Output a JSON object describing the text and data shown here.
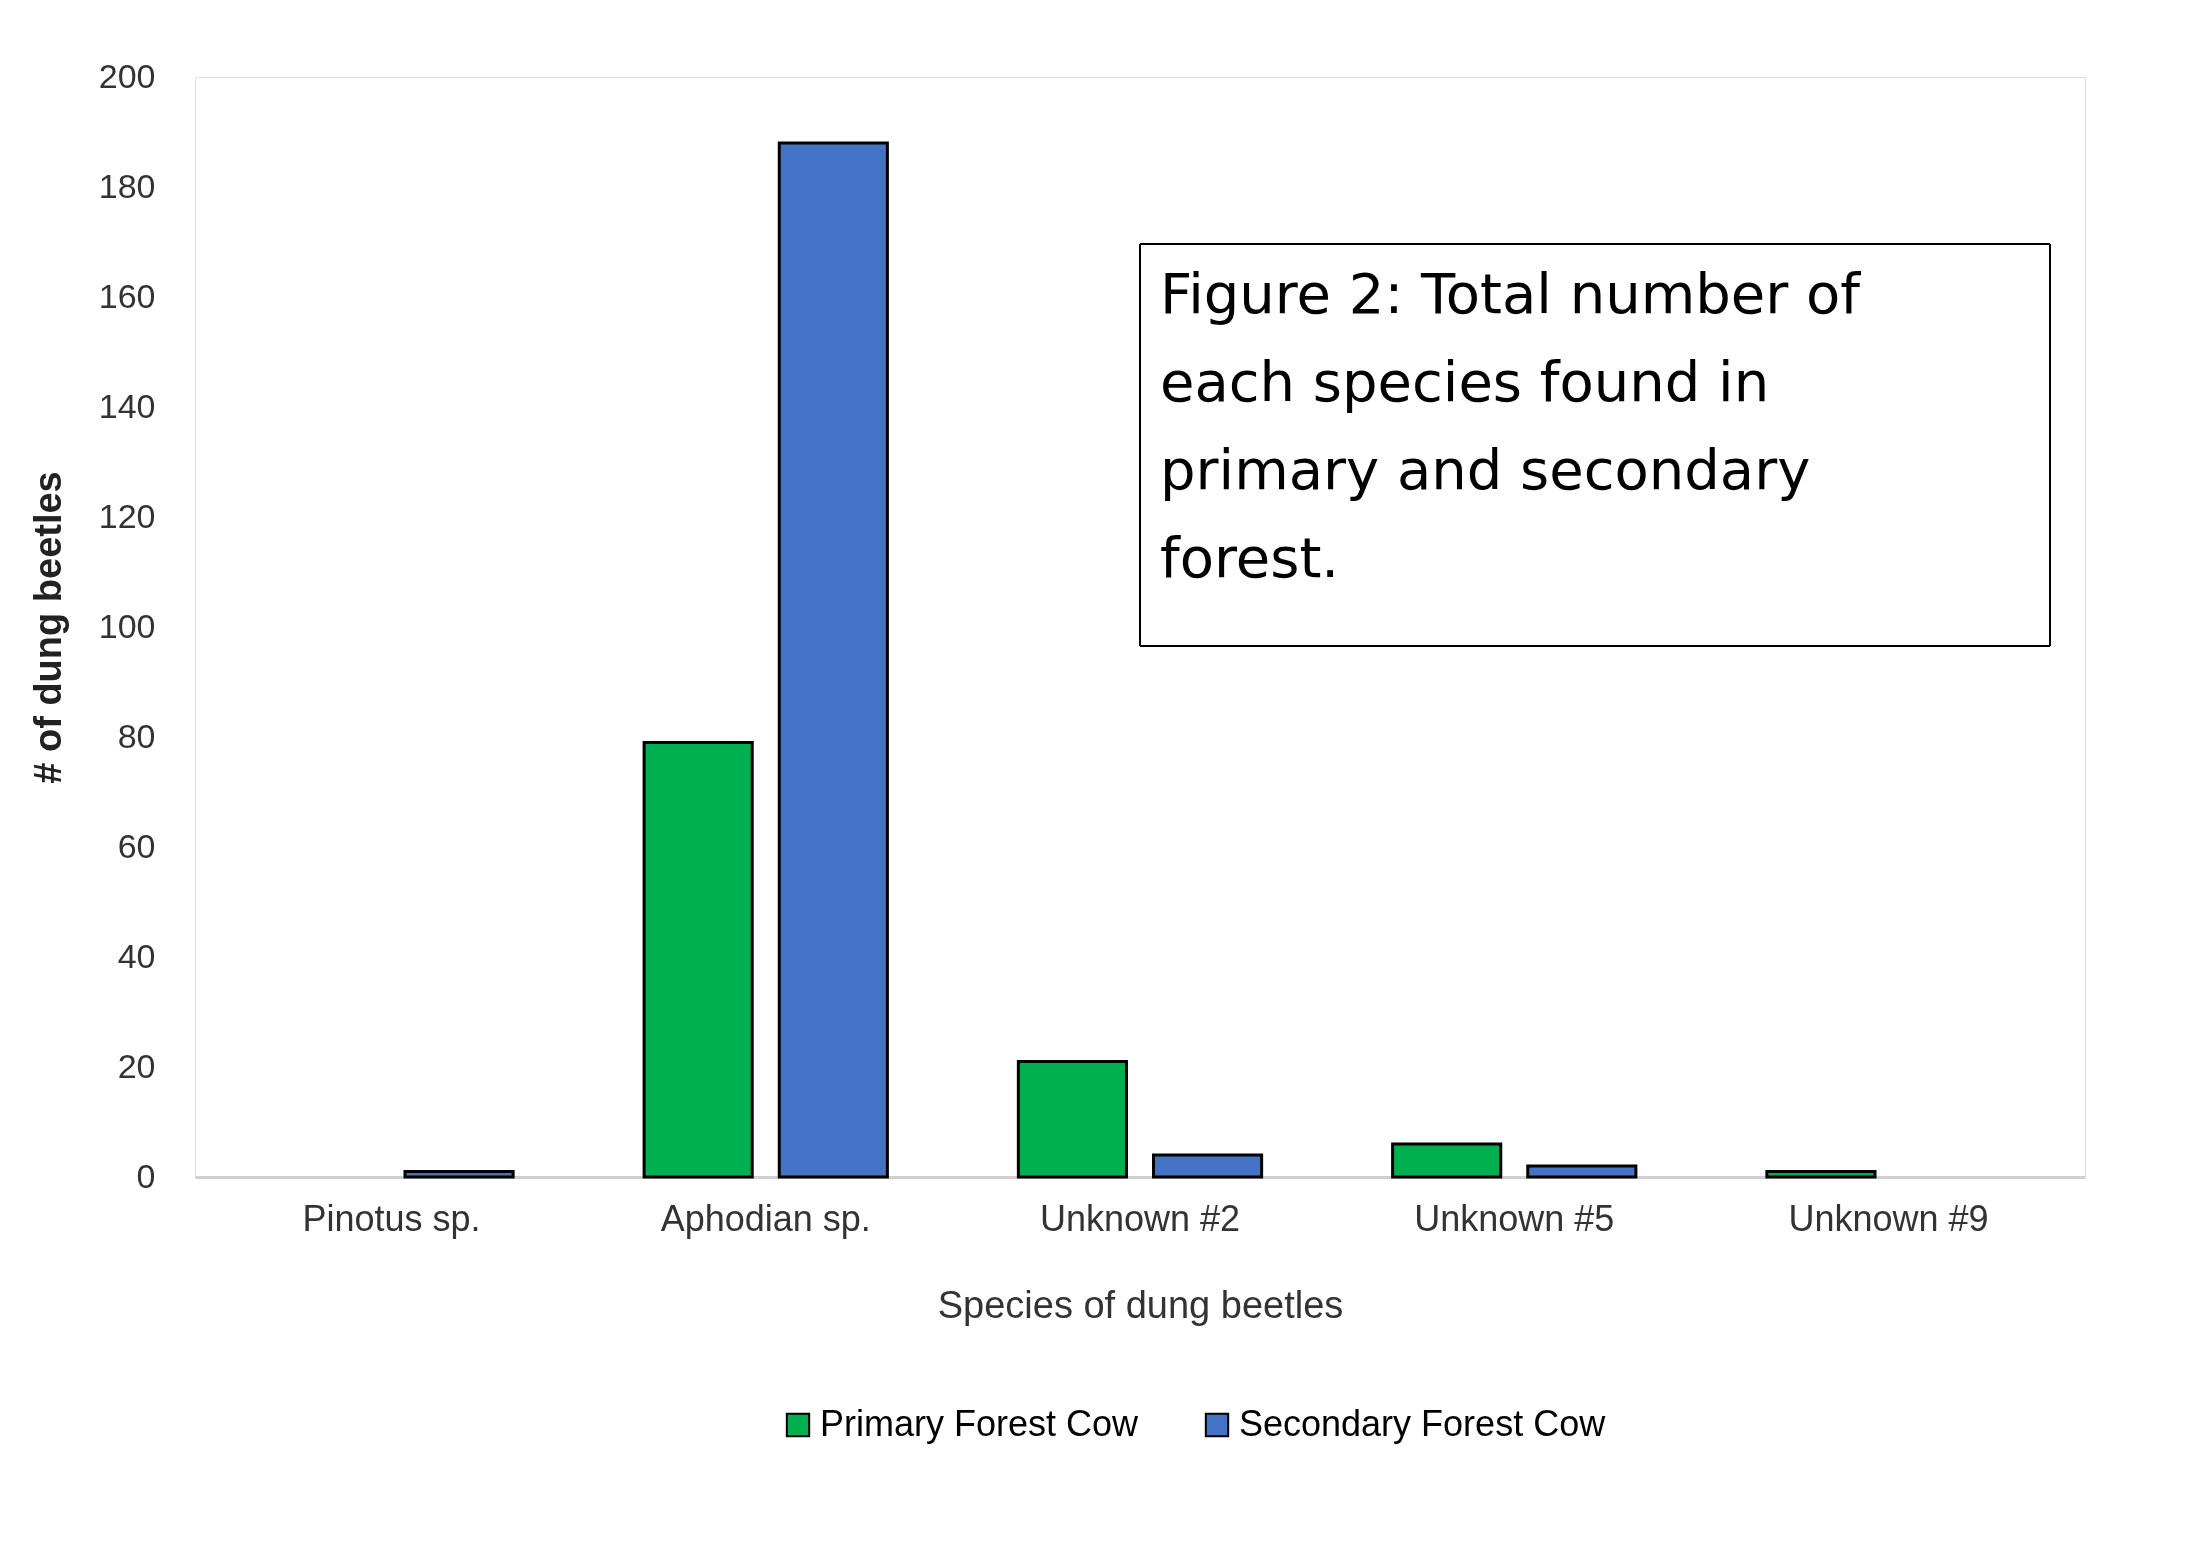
{
  "chart_data": {
    "type": "bar",
    "xlabel": "Species of dung beetles",
    "ylabel": "# of dung beetles",
    "categories": [
      "Pinotus sp.",
      "Aphodian sp.",
      "Unknown #2",
      "Unknown #5",
      "Unknown #9"
    ],
    "series": [
      {
        "name": "Primary Forest Cow",
        "color": "#00b050",
        "values": [
          null,
          79,
          21,
          6,
          1
        ]
      },
      {
        "name": "Secondary Forest Cow",
        "color": "#4472c4",
        "values": [
          1,
          188,
          4,
          2,
          null
        ]
      }
    ],
    "ylim": [
      0,
      200
    ],
    "yticks": [
      0,
      20,
      40,
      60,
      80,
      100,
      120,
      140,
      160,
      180,
      200
    ],
    "grid": false,
    "legend": "bottom",
    "annotations": [
      "Figure 2: Total number of each species found in primary and secondary forest."
    ]
  }
}
